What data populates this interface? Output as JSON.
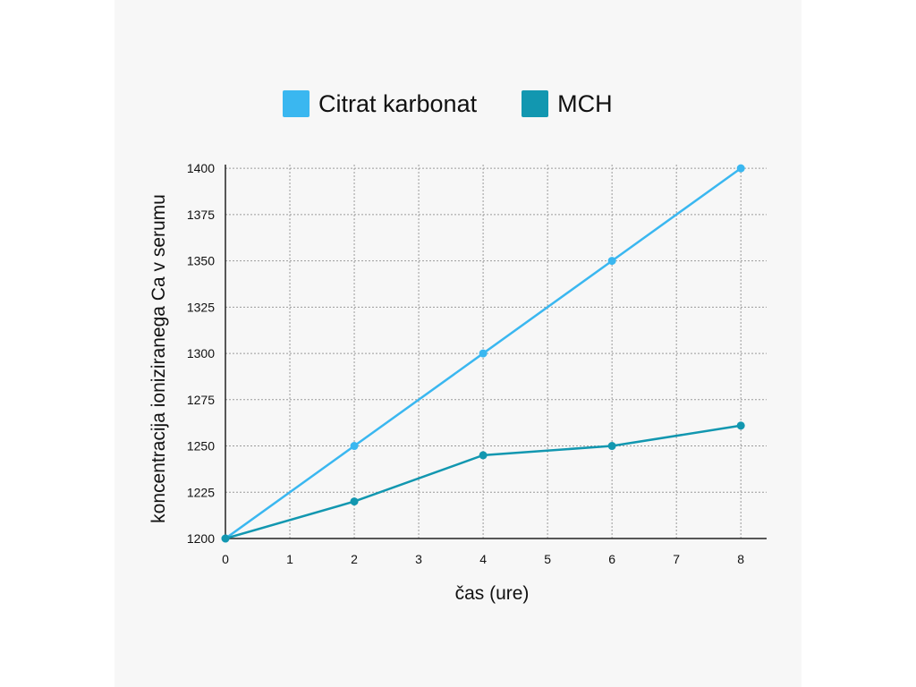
{
  "chart_data": {
    "type": "line",
    "xlabel": "čas (ure)",
    "ylabel": "koncentracija ioniziranega Ca v serumu",
    "xlim": [
      0,
      8.4
    ],
    "ylim": [
      1200,
      1402
    ],
    "xticks": [
      0,
      1,
      2,
      3,
      4,
      5,
      6,
      7,
      8
    ],
    "yticks": [
      1200,
      1225,
      1250,
      1275,
      1300,
      1325,
      1350,
      1375,
      1400
    ],
    "grid": true,
    "legend_position": "top",
    "series": [
      {
        "name": "Citrat karbonat",
        "color": "#3ab7f0",
        "x": [
          0,
          2,
          4,
          6,
          8
        ],
        "y": [
          1200,
          1250,
          1300,
          1350,
          1400
        ]
      },
      {
        "name": "MCH",
        "color": "#1297b0",
        "x": [
          0,
          2,
          4,
          6,
          8
        ],
        "y": [
          1200,
          1220,
          1245,
          1250,
          1261
        ]
      }
    ]
  }
}
